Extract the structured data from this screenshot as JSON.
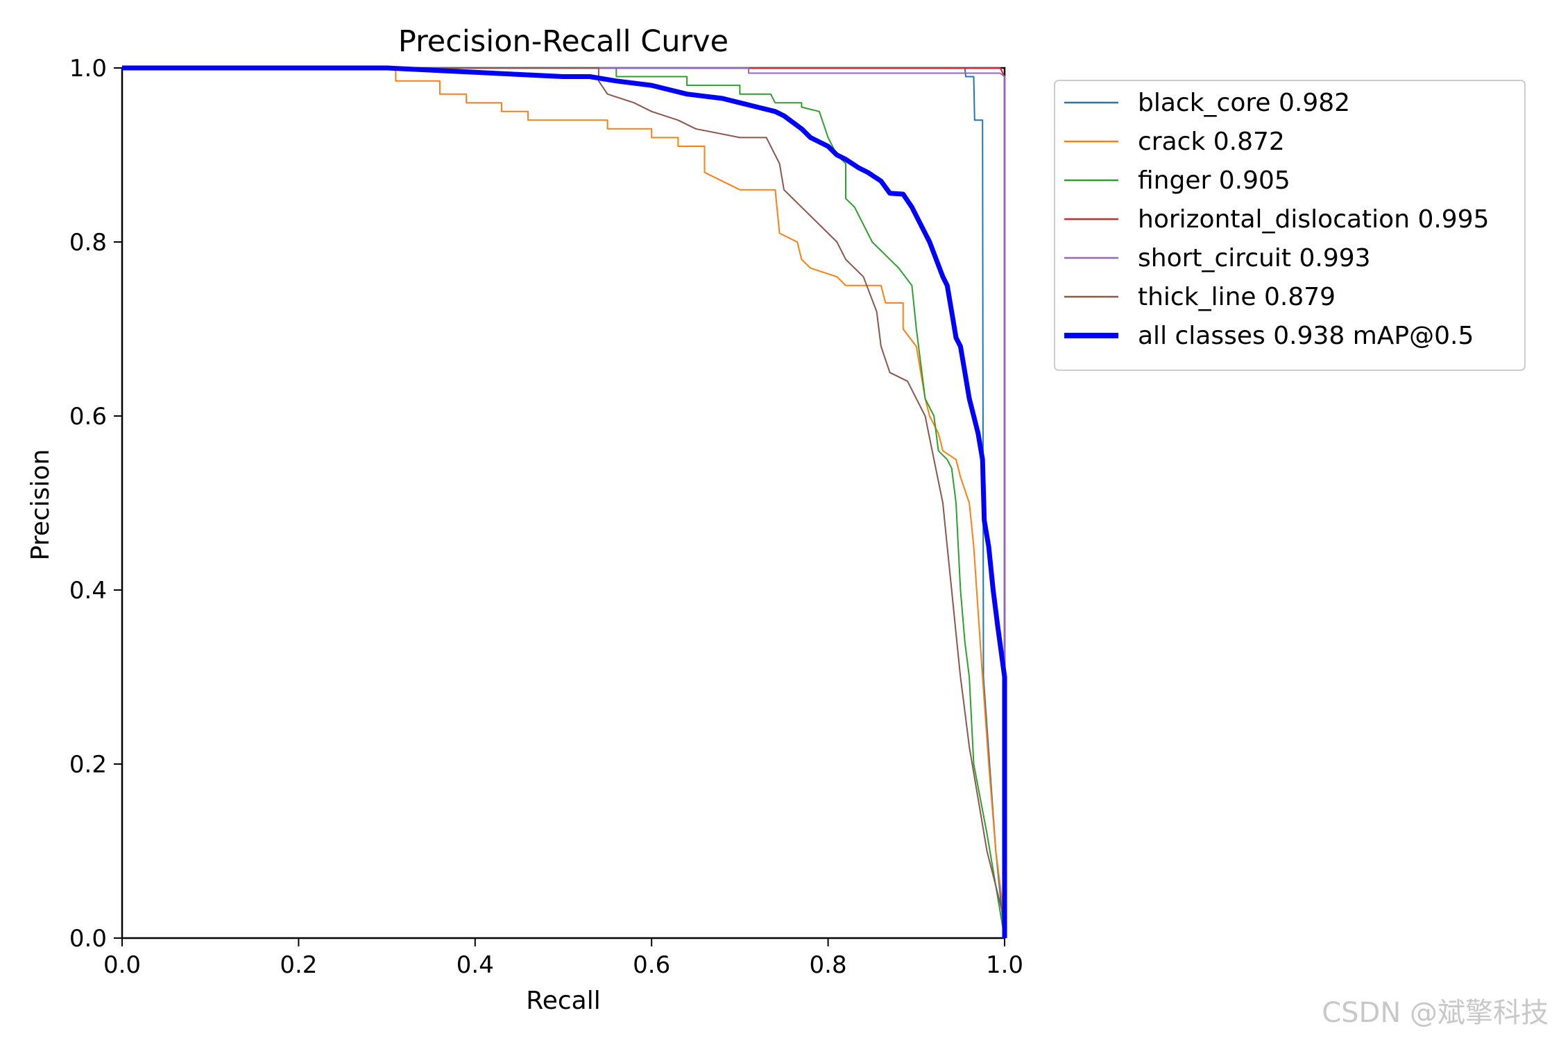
{
  "chart_data": {
    "type": "line",
    "title": "Precision-Recall Curve",
    "xlabel": "Recall",
    "ylabel": "Precision",
    "xlim": [
      0,
      1
    ],
    "ylim": [
      0,
      1
    ],
    "xticks": [
      "0.0",
      "0.2",
      "0.4",
      "0.6",
      "0.8",
      "1.0"
    ],
    "yticks": [
      "0.0",
      "0.2",
      "0.4",
      "0.6",
      "0.8",
      "1.0"
    ],
    "legend_position": "outside-top-right",
    "series": [
      {
        "name": "black_core",
        "label": "black_core 0.982",
        "color": "#1f77b4",
        "width": 2,
        "points": [
          [
            0,
            1
          ],
          [
            0.955,
            1
          ],
          [
            0.956,
            0.99
          ],
          [
            0.965,
            0.99
          ],
          [
            0.966,
            0.94
          ],
          [
            0.975,
            0.94
          ],
          [
            0.976,
            0.3
          ],
          [
            0.99,
            0.1
          ],
          [
            1.0,
            0.0
          ]
        ]
      },
      {
        "name": "crack",
        "label": "crack 0.872",
        "color": "#ff7f0e",
        "width": 2,
        "points": [
          [
            0,
            1
          ],
          [
            0.31,
            1
          ],
          [
            0.31,
            0.985
          ],
          [
            0.36,
            0.985
          ],
          [
            0.36,
            0.97
          ],
          [
            0.39,
            0.97
          ],
          [
            0.39,
            0.96
          ],
          [
            0.43,
            0.96
          ],
          [
            0.43,
            0.95
          ],
          [
            0.46,
            0.95
          ],
          [
            0.46,
            0.94
          ],
          [
            0.55,
            0.94
          ],
          [
            0.55,
            0.93
          ],
          [
            0.6,
            0.93
          ],
          [
            0.6,
            0.92
          ],
          [
            0.63,
            0.92
          ],
          [
            0.63,
            0.91
          ],
          [
            0.66,
            0.91
          ],
          [
            0.66,
            0.88
          ],
          [
            0.68,
            0.87
          ],
          [
            0.7,
            0.86
          ],
          [
            0.74,
            0.86
          ],
          [
            0.745,
            0.81
          ],
          [
            0.765,
            0.8
          ],
          [
            0.77,
            0.78
          ],
          [
            0.78,
            0.77
          ],
          [
            0.81,
            0.76
          ],
          [
            0.82,
            0.75
          ],
          [
            0.86,
            0.75
          ],
          [
            0.865,
            0.73
          ],
          [
            0.885,
            0.73
          ],
          [
            0.885,
            0.7
          ],
          [
            0.9,
            0.68
          ],
          [
            0.905,
            0.65
          ],
          [
            0.91,
            0.62
          ],
          [
            0.915,
            0.6
          ],
          [
            0.925,
            0.58
          ],
          [
            0.93,
            0.56
          ],
          [
            0.945,
            0.55
          ],
          [
            0.95,
            0.53
          ],
          [
            0.96,
            0.5
          ],
          [
            0.965,
            0.45
          ],
          [
            0.975,
            0.3
          ],
          [
            0.982,
            0.2
          ],
          [
            0.99,
            0.1
          ],
          [
            1.0,
            0.02
          ]
        ]
      },
      {
        "name": "finger",
        "label": "finger 0.905",
        "color": "#2ca02c",
        "width": 2,
        "points": [
          [
            0,
            1
          ],
          [
            0.56,
            1
          ],
          [
            0.56,
            0.99
          ],
          [
            0.64,
            0.99
          ],
          [
            0.64,
            0.98
          ],
          [
            0.7,
            0.98
          ],
          [
            0.7,
            0.97
          ],
          [
            0.735,
            0.97
          ],
          [
            0.74,
            0.96
          ],
          [
            0.77,
            0.96
          ],
          [
            0.77,
            0.955
          ],
          [
            0.79,
            0.95
          ],
          [
            0.8,
            0.92
          ],
          [
            0.81,
            0.9
          ],
          [
            0.82,
            0.89
          ],
          [
            0.82,
            0.85
          ],
          [
            0.83,
            0.84
          ],
          [
            0.85,
            0.8
          ],
          [
            0.86,
            0.79
          ],
          [
            0.87,
            0.78
          ],
          [
            0.88,
            0.77
          ],
          [
            0.895,
            0.75
          ],
          [
            0.9,
            0.7
          ],
          [
            0.905,
            0.66
          ],
          [
            0.91,
            0.62
          ],
          [
            0.92,
            0.6
          ],
          [
            0.925,
            0.56
          ],
          [
            0.935,
            0.55
          ],
          [
            0.94,
            0.54
          ],
          [
            0.945,
            0.5
          ],
          [
            0.95,
            0.4
          ],
          [
            0.955,
            0.34
          ],
          [
            0.96,
            0.3
          ],
          [
            0.965,
            0.2
          ],
          [
            0.98,
            0.12
          ],
          [
            0.99,
            0.06
          ],
          [
            1.0,
            0.0
          ]
        ]
      },
      {
        "name": "horizontal_dislocation",
        "label": "horizontal_dislocation 0.995",
        "color": "#d62728",
        "width": 2,
        "points": [
          [
            0,
            1
          ],
          [
            0.995,
            1
          ],
          [
            1.0,
            0.99
          ],
          [
            1.0,
            0.0
          ]
        ]
      },
      {
        "name": "short_circuit",
        "label": "short_circuit 0.993",
        "color": "#9467bd",
        "width": 2,
        "points": [
          [
            0,
            1
          ],
          [
            0.71,
            1
          ],
          [
            0.71,
            0.994
          ],
          [
            0.995,
            0.994
          ],
          [
            1.0,
            0.99
          ],
          [
            1.0,
            0.0
          ]
        ]
      },
      {
        "name": "thick_line",
        "label": "thick_line 0.879",
        "color": "#8c564b",
        "width": 2,
        "points": [
          [
            0,
            1
          ],
          [
            0.54,
            1
          ],
          [
            0.54,
            0.985
          ],
          [
            0.55,
            0.97
          ],
          [
            0.58,
            0.96
          ],
          [
            0.6,
            0.95
          ],
          [
            0.63,
            0.94
          ],
          [
            0.65,
            0.93
          ],
          [
            0.7,
            0.92
          ],
          [
            0.73,
            0.92
          ],
          [
            0.745,
            0.89
          ],
          [
            0.75,
            0.86
          ],
          [
            0.77,
            0.84
          ],
          [
            0.79,
            0.82
          ],
          [
            0.81,
            0.8
          ],
          [
            0.82,
            0.78
          ],
          [
            0.84,
            0.76
          ],
          [
            0.855,
            0.72
          ],
          [
            0.86,
            0.68
          ],
          [
            0.87,
            0.65
          ],
          [
            0.89,
            0.64
          ],
          [
            0.9,
            0.62
          ],
          [
            0.91,
            0.6
          ],
          [
            0.92,
            0.55
          ],
          [
            0.93,
            0.5
          ],
          [
            0.935,
            0.45
          ],
          [
            0.94,
            0.4
          ],
          [
            0.945,
            0.35
          ],
          [
            0.95,
            0.3
          ],
          [
            0.955,
            0.26
          ],
          [
            0.96,
            0.22
          ],
          [
            0.98,
            0.1
          ],
          [
            1.0,
            0.02
          ]
        ]
      },
      {
        "name": "all_classes",
        "label": "all classes 0.938 mAP@0.5",
        "color": "#0000ff",
        "width": 7,
        "points": [
          [
            0,
            1
          ],
          [
            0.3,
            1
          ],
          [
            0.4,
            0.995
          ],
          [
            0.5,
            0.99
          ],
          [
            0.53,
            0.99
          ],
          [
            0.56,
            0.985
          ],
          [
            0.6,
            0.98
          ],
          [
            0.64,
            0.97
          ],
          [
            0.68,
            0.965
          ],
          [
            0.7,
            0.96
          ],
          [
            0.72,
            0.955
          ],
          [
            0.74,
            0.95
          ],
          [
            0.75,
            0.945
          ],
          [
            0.77,
            0.93
          ],
          [
            0.78,
            0.92
          ],
          [
            0.8,
            0.91
          ],
          [
            0.81,
            0.9
          ],
          [
            0.82,
            0.895
          ],
          [
            0.835,
            0.885
          ],
          [
            0.845,
            0.88
          ],
          [
            0.86,
            0.87
          ],
          [
            0.87,
            0.856
          ],
          [
            0.885,
            0.855
          ],
          [
            0.895,
            0.84
          ],
          [
            0.9,
            0.83
          ],
          [
            0.91,
            0.81
          ],
          [
            0.915,
            0.8
          ],
          [
            0.93,
            0.76
          ],
          [
            0.935,
            0.75
          ],
          [
            0.94,
            0.72
          ],
          [
            0.945,
            0.69
          ],
          [
            0.95,
            0.68
          ],
          [
            0.955,
            0.65
          ],
          [
            0.96,
            0.62
          ],
          [
            0.965,
            0.6
          ],
          [
            0.97,
            0.58
          ],
          [
            0.975,
            0.55
          ],
          [
            0.977,
            0.48
          ],
          [
            0.982,
            0.45
          ],
          [
            0.987,
            0.4
          ],
          [
            0.992,
            0.36
          ],
          [
            0.996,
            0.33
          ],
          [
            1.0,
            0.3
          ],
          [
            1.0,
            0.0
          ]
        ]
      }
    ]
  },
  "watermark": "CSDN @斌擎科技"
}
